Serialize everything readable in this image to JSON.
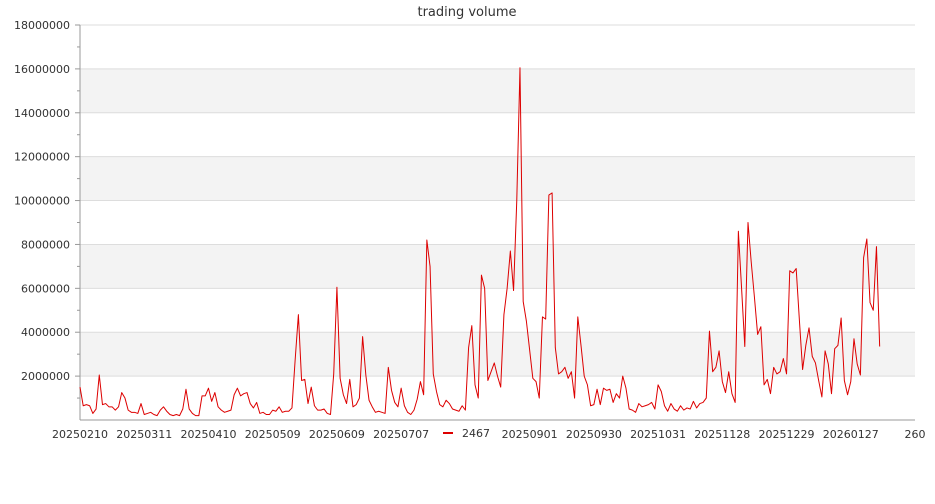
{
  "chart_data": {
    "type": "line",
    "title": "trading volume",
    "xlabel": "",
    "ylabel": "",
    "ylim": [
      0,
      18000000
    ],
    "y_ticks": [
      2000000,
      4000000,
      6000000,
      8000000,
      10000000,
      12000000,
      14000000,
      16000000,
      18000000
    ],
    "x_range": [
      0,
      260
    ],
    "x_ticks": [
      {
        "x": 0,
        "label": "20250210"
      },
      {
        "x": 20,
        "label": "20250311"
      },
      {
        "x": 40,
        "label": "20250410"
      },
      {
        "x": 60,
        "label": "20250509"
      },
      {
        "x": 80,
        "label": "20250609"
      },
      {
        "x": 100,
        "label": "20250707"
      },
      {
        "x": 140,
        "label": "20250901"
      },
      {
        "x": 160,
        "label": "20250930"
      },
      {
        "x": 180,
        "label": "20251031"
      },
      {
        "x": 200,
        "label": "20251128"
      },
      {
        "x": 220,
        "label": "20251229"
      },
      {
        "x": 240,
        "label": "20260127"
      },
      {
        "x": 260,
        "label": "260"
      }
    ],
    "grid": true,
    "legend": "bottom-center",
    "series": [
      {
        "name": "2467",
        "color": "#dd0000",
        "values": [
          1500000,
          650000,
          700000,
          650000,
          300000,
          500000,
          2050000,
          700000,
          750000,
          600000,
          600000,
          450000,
          600000,
          1250000,
          1000000,
          450000,
          350000,
          350000,
          300000,
          750000,
          250000,
          300000,
          350000,
          250000,
          200000,
          450000,
          600000,
          400000,
          250000,
          200000,
          250000,
          200000,
          500000,
          1400000,
          500000,
          300000,
          200000,
          200000,
          1100000,
          1100000,
          1450000,
          850000,
          1250000,
          600000,
          450000,
          350000,
          400000,
          450000,
          1150000,
          1450000,
          1100000,
          1200000,
          1250000,
          750000,
          550000,
          800000,
          300000,
          350000,
          250000,
          250000,
          450000,
          400000,
          600000,
          350000,
          400000,
          400000,
          550000,
          2750000,
          4800000,
          1800000,
          1850000,
          750000,
          1500000,
          650000,
          450000,
          450000,
          500000,
          300000,
          250000,
          2100000,
          6050000,
          1900000,
          1150000,
          750000,
          1850000,
          600000,
          700000,
          1000000,
          3800000,
          2050000,
          900000,
          600000,
          350000,
          400000,
          350000,
          300000,
          2400000,
          1350000,
          800000,
          600000,
          1450000,
          650000,
          350000,
          250000,
          450000,
          950000,
          1750000,
          1150000,
          8200000,
          7000000,
          2100000,
          1300000,
          700000,
          600000,
          900000,
          750000,
          500000,
          450000,
          400000,
          650000,
          450000,
          3300000,
          4300000,
          1600000,
          1000000,
          6600000,
          6000000,
          1800000,
          2200000,
          2600000,
          2000000,
          1500000,
          4800000,
          6000000,
          7700000,
          5900000,
          10000000,
          16050000,
          5400000,
          4500000,
          3200000,
          1900000,
          1750000,
          1000000,
          4700000,
          4600000,
          10250000,
          10350000,
          3300000,
          2100000,
          2200000,
          2400000,
          1900000,
          2200000,
          1000000,
          4700000,
          3400000,
          2000000,
          1600000,
          650000,
          700000,
          1400000,
          700000,
          1450000,
          1350000,
          1400000,
          800000,
          1200000,
          1000000,
          2000000,
          1450000,
          500000,
          450000,
          350000,
          750000,
          600000,
          650000,
          700000,
          800000,
          500000,
          1600000,
          1300000,
          650000,
          400000,
          750000,
          500000,
          400000,
          650000,
          450000,
          550000,
          500000,
          850000,
          550000,
          750000,
          800000,
          1000000,
          4050000,
          2200000,
          2400000,
          3150000,
          1750000,
          1250000,
          2200000,
          1200000,
          800000,
          8600000,
          6000000,
          3350000,
          9000000,
          7200000,
          5600000,
          3900000,
          4250000,
          1600000,
          1850000,
          1200000,
          2400000,
          2100000,
          2200000,
          2800000,
          2100000,
          6800000,
          6700000,
          6900000,
          4550000,
          2300000,
          3400000,
          4200000,
          2900000,
          2600000,
          1800000,
          1050000,
          3150000,
          2550000,
          1200000,
          3250000,
          3400000,
          4650000,
          1800000,
          1150000,
          1750000,
          3700000,
          2550000,
          2050000,
          7400000,
          8250000,
          5350000,
          5000000,
          7900000,
          3350000
        ]
      }
    ]
  }
}
